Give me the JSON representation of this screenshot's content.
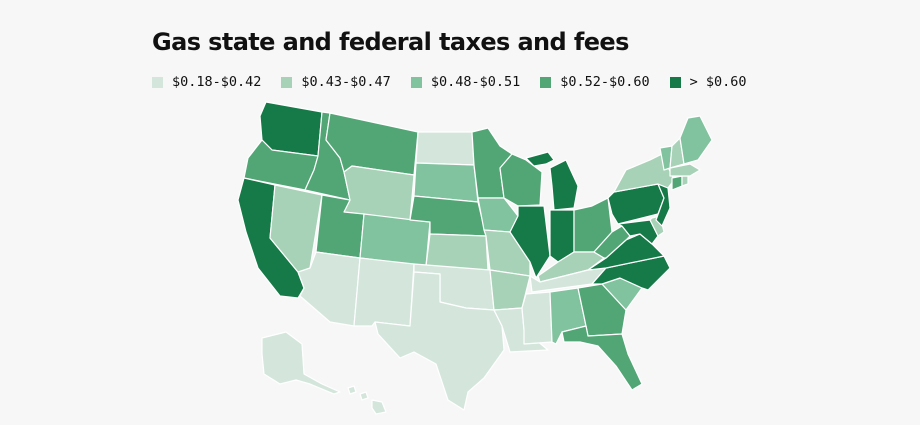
{
  "title": "Gas state and federal taxes and fees",
  "colors": {
    "b1": "#d4e6dc",
    "b2": "#a8d2b7",
    "b3": "#81c39f",
    "b4": "#52a675",
    "b5": "#157a47"
  },
  "legend": {
    "items": [
      {
        "label": "$0.18-$0.42",
        "bin": "b1"
      },
      {
        "label": "$0.43-$0.47",
        "bin": "b2"
      },
      {
        "label": "$0.48-$0.51",
        "bin": "b3"
      },
      {
        "label": "$0.52-$0.60",
        "bin": "b4"
      },
      {
        "label": "> $0.60",
        "bin": "b5"
      }
    ]
  },
  "states": {
    "WA": "b5",
    "OR": "b4",
    "CA": "b5",
    "ID": "b4",
    "NV": "b2",
    "MT": "b4",
    "WY": "b2",
    "UT": "b4",
    "AZ": "b1",
    "CO": "b3",
    "NM": "b1",
    "ND": "b1",
    "SD": "b3",
    "NE": "b4",
    "KS": "b2",
    "OK": "b1",
    "TX": "b1",
    "MN": "b4",
    "IA": "b3",
    "MO": "b2",
    "AR": "b2",
    "LA": "b1",
    "WI": "b4",
    "IL": "b5",
    "MI": "b5",
    "IN": "b5",
    "OH": "b4",
    "KY": "b2",
    "TN": "b1",
    "MS": "b1",
    "AL": "b3",
    "GA": "b4",
    "FL": "b4",
    "SC": "b3",
    "NC": "b5",
    "VA": "b5",
    "WV": "b4",
    "MD": "b5",
    "DE": "b2",
    "NJ": "b5",
    "PA": "b5",
    "NY": "b2",
    "CT": "b4",
    "RI": "b2",
    "MA": "b2",
    "VT": "b3",
    "NH": "b2",
    "ME": "b3",
    "AK": "b1",
    "HI": "b1"
  }
}
